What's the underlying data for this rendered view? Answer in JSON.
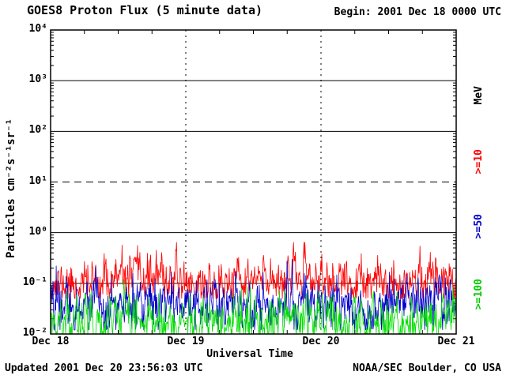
{
  "page": {
    "updated": "Updated 2001 Dec 20 23:56:03 UTC",
    "credit": "NOAA/SEC Boulder, CO USA"
  },
  "chart_data": {
    "type": "line",
    "title": "GOES8 Proton Flux (5 minute data)",
    "begin_label": "Begin: 2001 Dec 18 0000 UTC",
    "xlabel": "Universal Time",
    "ylabel": "Particles cm⁻²s⁻¹sr⁻¹",
    "y_scale": "log",
    "ylim": [
      0.01,
      10000
    ],
    "ylog_min": -2,
    "ylog_max": 4,
    "duration_days": 3,
    "cadence_minutes": 5,
    "n_points": 864,
    "yticks": [
      {
        "label": "10⁴",
        "log10": 4
      },
      {
        "label": "10³",
        "log10": 3
      },
      {
        "label": "10²",
        "log10": 2
      },
      {
        "label": "10¹",
        "log10": 1
      },
      {
        "label": "10⁰",
        "log10": 0
      },
      {
        "label": "10⁻¹",
        "log10": -1
      },
      {
        "label": "10⁻²",
        "log10": -2
      }
    ],
    "xticks": [
      {
        "label": "Dec 18",
        "frac": 0
      },
      {
        "label": "Dec 19",
        "frac": 0.33333
      },
      {
        "label": "Dec 20",
        "frac": 0.66667
      },
      {
        "label": "Dec 21",
        "frac": 1
      }
    ],
    "hlines": [
      {
        "log10": 3,
        "style": "solid"
      },
      {
        "log10": 2,
        "style": "solid"
      },
      {
        "log10": 1,
        "style": "dashed"
      },
      {
        "log10": 0,
        "style": "solid"
      },
      {
        "log10": -1,
        "style": "solid"
      }
    ],
    "vlines": [
      {
        "frac": 0.33333,
        "style": "dotted"
      },
      {
        "frac": 0.66667,
        "style": "dotted"
      }
    ],
    "right_labels": [
      {
        "text": "MeV",
        "color": "#000000"
      },
      {
        "text": ">=10",
        "color": "#ff0000"
      },
      {
        "text": ">=50",
        "color": "#0000cc"
      },
      {
        "text": ">=100",
        "color": "#00cc00"
      }
    ],
    "series": [
      {
        "name": "p_gte_10MeV",
        "label": ">=10 MeV",
        "color": "#ff0000",
        "log10_mean": -0.95,
        "log10_sd": 0.22,
        "min": 0.05,
        "max": 0.65,
        "wobble": 0.08,
        "wobble_period": 1.1,
        "phi": 0.35,
        "seed": 11
      },
      {
        "name": "p_gte_50MeV",
        "label": ">=50 MeV",
        "color": "#0000cc",
        "log10_mean": -1.42,
        "log10_sd": 0.26,
        "min": 0.012,
        "max": 0.3,
        "wobble": 0.07,
        "wobble_period": 0.9,
        "phi": 0.35,
        "seed": 22
      },
      {
        "name": "p_gte_100MeV",
        "label": ">=100 MeV",
        "color": "#00dd00",
        "log10_mean": -1.75,
        "log10_sd": 0.26,
        "min": 0.01,
        "max": 0.12,
        "wobble": 0.06,
        "wobble_period": 1.3,
        "phi": 0.35,
        "seed": 33
      }
    ]
  }
}
